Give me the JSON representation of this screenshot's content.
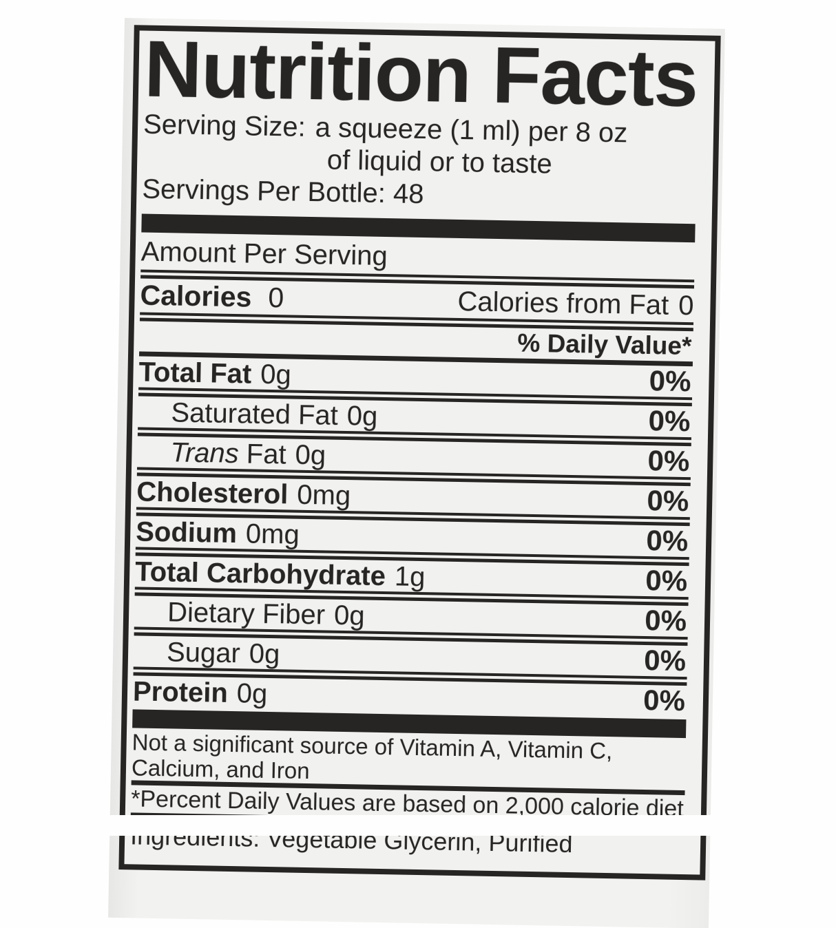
{
  "label": {
    "colors": {
      "ink": "#272523",
      "paper": "#f1f1ef",
      "background": "#fefefe"
    },
    "title": "Nutrition Facts",
    "serving": {
      "label": "Serving Size:",
      "line1": "a squeeze (1 ml) per 8 oz",
      "line2": "of liquid or to taste",
      "servings_per_bottle": "Servings Per Bottle: 48"
    },
    "amount_per_serving": "Amount Per Serving",
    "calories_row": {
      "label": "Calories",
      "value": "0",
      "right_label": "Calories from Fat",
      "right_value": "0"
    },
    "daily_value_header": "% Daily Value*",
    "rows": [
      {
        "label": "Total Fat",
        "amount": "0g",
        "dv": "0%",
        "emphasis": "bold",
        "indent": false
      },
      {
        "label": "Saturated Fat",
        "amount": "0g",
        "dv": "0%",
        "emphasis": "normal",
        "indent": true
      },
      {
        "label_italic_prefix": "Trans",
        "label": "Fat",
        "amount": "0g",
        "dv": "0%",
        "emphasis": "normal",
        "indent": true
      },
      {
        "label": "Cholesterol",
        "amount": "0mg",
        "dv": "0%",
        "emphasis": "bold",
        "indent": false
      },
      {
        "label": "Sodium",
        "amount": "0mg",
        "dv": "0%",
        "emphasis": "bold",
        "indent": false
      },
      {
        "label": "Total Carbohydrate",
        "amount": "1g",
        "dv": "0%",
        "emphasis": "bold",
        "indent": false
      },
      {
        "label": "Dietary Fiber",
        "amount": "0g",
        "dv": "0%",
        "emphasis": "normal",
        "indent": true
      },
      {
        "label": "Sugar",
        "amount": "0g",
        "dv": "0%",
        "emphasis": "normal",
        "indent": true
      },
      {
        "label": "Protein",
        "amount": "0g",
        "dv": "0%",
        "emphasis": "bold",
        "indent": false
      }
    ],
    "footnote_line1": "Not a significant source of Vitamin A, Vitamin C,",
    "footnote_line2": "Calcium, and Iron",
    "percent_note": "*Percent Daily Values are based on 2,000 calorie diet",
    "bottom_partial_line": "Ingredients: Vegetable Glycerin, Purified"
  }
}
